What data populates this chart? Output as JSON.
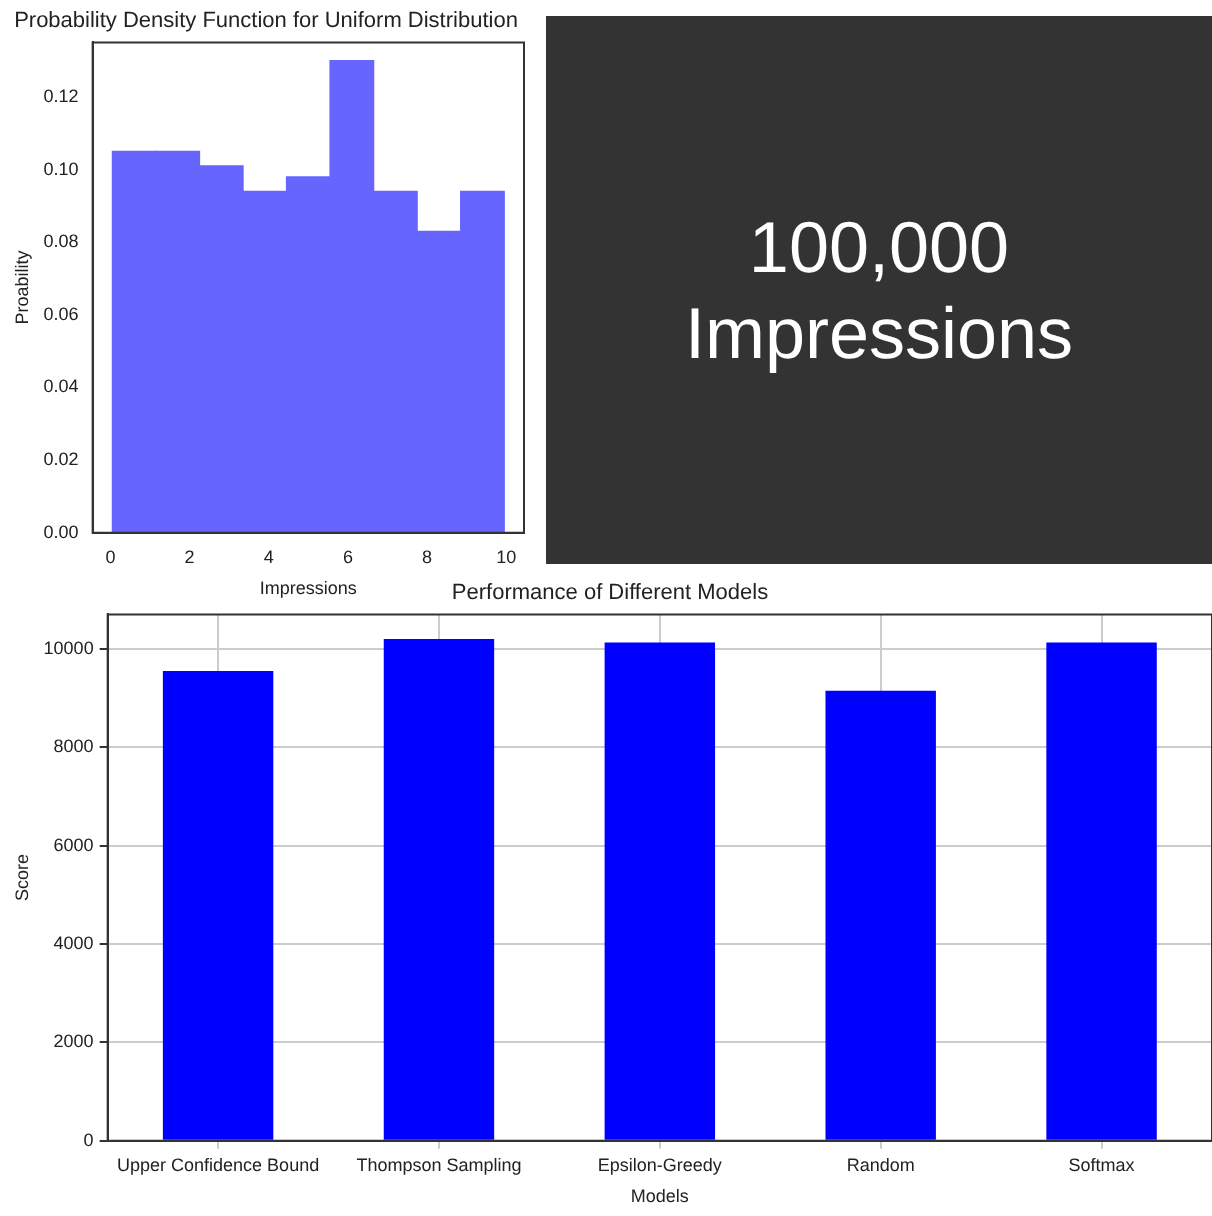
{
  "chart_data": [
    {
      "type": "histogram",
      "title": "Probability Density Function for Uniform Distribution",
      "xlabel": "Impressions",
      "ylabel": "Proability",
      "bins": [
        0.05,
        1.15,
        2.25,
        3.35,
        4.45,
        5.55,
        6.65,
        7.75,
        8.85,
        9.95
      ],
      "values": [
        0.105,
        0.105,
        0.101,
        0.094,
        0.098,
        0.13,
        0.094,
        0.083,
        0.094
      ],
      "color": "#6666ff",
      "xlim": [
        -0.45,
        10.45
      ],
      "xticks": [
        0,
        2,
        4,
        6,
        8,
        10
      ],
      "ylim": [
        0,
        0.135
      ],
      "yticks": [
        {
          "value": 0,
          "label": "0.00"
        },
        {
          "value": 0.02,
          "label": "0.02"
        },
        {
          "value": 0.04,
          "label": "0.04"
        },
        {
          "value": 0.06,
          "label": "0.06"
        },
        {
          "value": 0.08,
          "label": "0.08"
        },
        {
          "value": 0.1,
          "label": "0.10"
        },
        {
          "value": 0.12,
          "label": "0.12"
        }
      ],
      "grid": false,
      "legend": false
    },
    {
      "type": "other",
      "annotations": [
        "100,000",
        "Impressions"
      ]
    },
    {
      "type": "bar",
      "title": "Performance of Different Models",
      "xlabel": "Models",
      "ylabel": "Score",
      "categories": [
        "Upper Confidence Bound",
        "Thompson Sampling",
        "Epsilon-Greedy",
        "Random",
        "Softmax"
      ],
      "values": [
        9550,
        10200,
        10130,
        9150,
        10130
      ],
      "color": "#0000ff",
      "ylim": [
        0,
        10700
      ],
      "yticks": [
        0,
        2000,
        4000,
        6000,
        8000,
        10000
      ],
      "grid": true,
      "legend": false
    }
  ]
}
